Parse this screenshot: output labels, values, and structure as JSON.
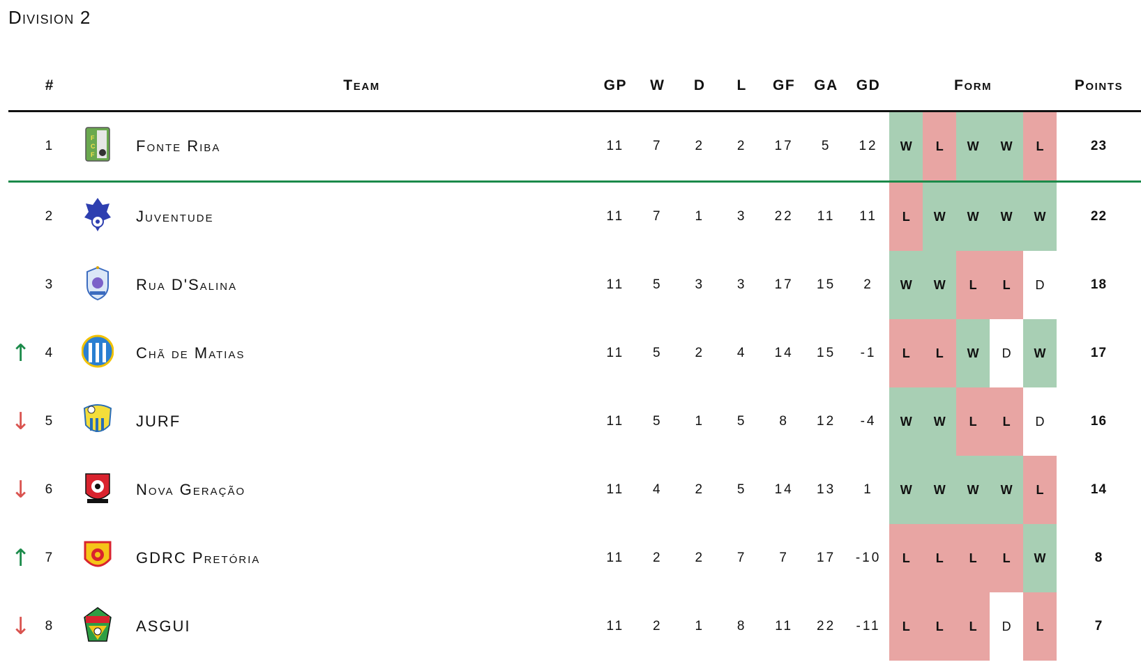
{
  "title": "Division 2",
  "headers": {
    "rank": "#",
    "team": "Team",
    "gp": "GP",
    "w": "W",
    "d": "D",
    "l": "L",
    "gf": "GF",
    "ga": "GA",
    "gd": "GD",
    "form": "Form",
    "points": "Points"
  },
  "colors": {
    "win": "#a8cfb4",
    "loss": "#e8a5a3",
    "draw": "#ffffff",
    "promotion_line": "#1b8a4a",
    "up_arrow": "#1b8a4a",
    "down_arrow": "#d9534f"
  },
  "rows": [
    {
      "move": "",
      "rank": "1",
      "crest": "fonte-riba-crest-icon",
      "team": "Fonte Riba",
      "gp": "11",
      "w": "7",
      "d": "2",
      "l": "2",
      "gf": "17",
      "ga": "5",
      "gd": "12",
      "form": [
        "W",
        "L",
        "W",
        "W",
        "L"
      ],
      "points": "23"
    },
    {
      "move": "",
      "rank": "2",
      "crest": "juventude-crest-icon",
      "team": "Juventude",
      "gp": "11",
      "w": "7",
      "d": "1",
      "l": "3",
      "gf": "22",
      "ga": "11",
      "gd": "11",
      "form": [
        "L",
        "W",
        "W",
        "W",
        "W"
      ],
      "points": "22"
    },
    {
      "move": "",
      "rank": "3",
      "crest": "rua-dsalina-crest-icon",
      "team": "Rua D'Salina",
      "gp": "11",
      "w": "5",
      "d": "3",
      "l": "3",
      "gf": "17",
      "ga": "15",
      "gd": "2",
      "form": [
        "W",
        "W",
        "L",
        "L",
        "D"
      ],
      "points": "18"
    },
    {
      "move": "↑",
      "rank": "4",
      "crest": "cha-de-matias-crest-icon",
      "team": "Chã de Matias",
      "gp": "11",
      "w": "5",
      "d": "2",
      "l": "4",
      "gf": "14",
      "ga": "15",
      "gd": "-1",
      "form": [
        "L",
        "L",
        "W",
        "D",
        "W"
      ],
      "points": "17"
    },
    {
      "move": "↓",
      "rank": "5",
      "crest": "jurf-crest-icon",
      "team": "JURF",
      "gp": "11",
      "w": "5",
      "d": "1",
      "l": "5",
      "gf": "8",
      "ga": "12",
      "gd": "-4",
      "form": [
        "W",
        "W",
        "L",
        "L",
        "D"
      ],
      "points": "16"
    },
    {
      "move": "↓",
      "rank": "6",
      "crest": "nova-geracao-crest-icon",
      "team": "Nova Geração",
      "gp": "11",
      "w": "4",
      "d": "2",
      "l": "5",
      "gf": "14",
      "ga": "13",
      "gd": "1",
      "form": [
        "W",
        "W",
        "W",
        "W",
        "L"
      ],
      "points": "14"
    },
    {
      "move": "↑",
      "rank": "7",
      "crest": "gdrc-pretoria-crest-icon",
      "team": "GDRC Pretória",
      "gp": "11",
      "w": "2",
      "d": "2",
      "l": "7",
      "gf": "7",
      "ga": "17",
      "gd": "-10",
      "form": [
        "L",
        "L",
        "L",
        "L",
        "W"
      ],
      "points": "8"
    },
    {
      "move": "↓",
      "rank": "8",
      "crest": "asgui-crest-icon",
      "team": "ASGUI",
      "gp": "11",
      "w": "2",
      "d": "1",
      "l": "8",
      "gf": "11",
      "ga": "22",
      "gd": "-11",
      "form": [
        "L",
        "L",
        "L",
        "D",
        "L"
      ],
      "points": "7"
    }
  ]
}
